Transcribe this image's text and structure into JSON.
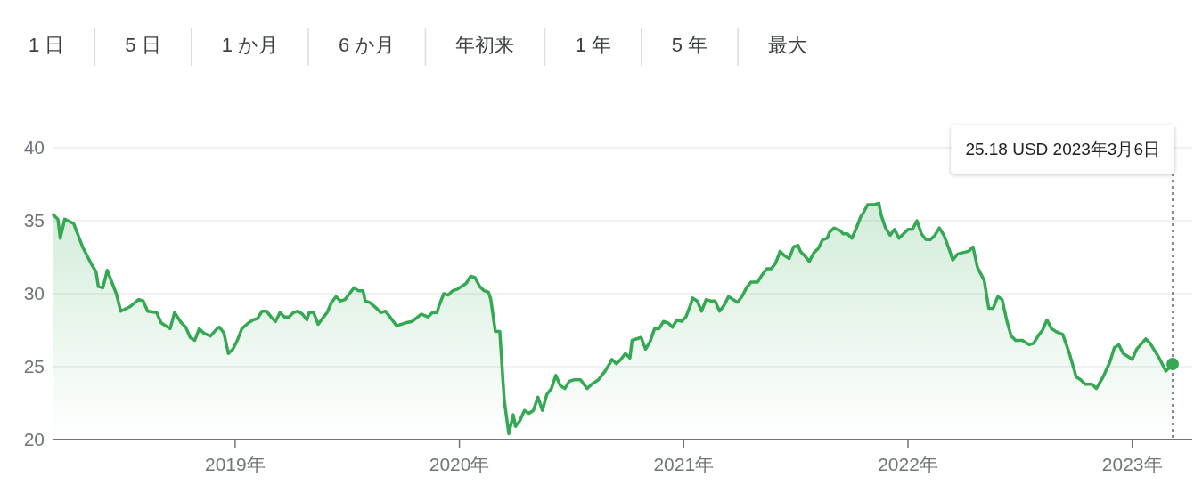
{
  "chart_data": {
    "type": "area",
    "annotations": [
      "1 日",
      "5 日",
      "1 か月",
      "6 か月",
      "年初来",
      "1 年",
      "5 年",
      "最大"
    ],
    "x": [
      2018.19,
      2018.21,
      2018.22,
      2018.24,
      2018.28,
      2018.32,
      2018.36,
      2018.38,
      2018.39,
      2018.41,
      2018.43,
      2018.47,
      2018.49,
      2018.53,
      2018.57,
      2018.59,
      2018.61,
      2018.65,
      2018.67,
      2018.71,
      2018.73,
      2018.76,
      2018.78,
      2018.8,
      2018.82,
      2018.84,
      2018.86,
      2018.89,
      2018.92,
      2018.93,
      2018.95,
      2018.97,
      2018.99,
      2019.01,
      2019.03,
      2019.06,
      2019.08,
      2019.1,
      2019.12,
      2019.14,
      2019.16,
      2019.18,
      2019.2,
      2019.22,
      2019.24,
      2019.26,
      2019.28,
      2019.3,
      2019.32,
      2019.33,
      2019.35,
      2019.37,
      2019.39,
      2019.41,
      2019.43,
      2019.45,
      2019.47,
      2019.49,
      2019.51,
      2019.53,
      2019.55,
      2019.57,
      2019.58,
      2019.6,
      2019.63,
      2019.65,
      2019.67,
      2019.69,
      2019.72,
      2019.76,
      2019.79,
      2019.83,
      2019.86,
      2019.88,
      2019.9,
      2019.91,
      2019.93,
      2019.95,
      2019.97,
      2019.99,
      2020.03,
      2020.05,
      2020.07,
      2020.09,
      2020.11,
      2020.13,
      2020.14,
      2020.16,
      2020.18,
      2020.2,
      2020.22,
      2020.24,
      2020.25,
      2020.27,
      2020.29,
      2020.31,
      2020.33,
      2020.35,
      2020.37,
      2020.39,
      2020.41,
      2020.43,
      2020.45,
      2020.47,
      2020.49,
      2020.51,
      2020.54,
      2020.57,
      2020.59,
      2020.62,
      2020.65,
      2020.67,
      2020.68,
      2020.7,
      2020.72,
      2020.74,
      2020.76,
      2020.77,
      2020.81,
      2020.83,
      2020.85,
      2020.87,
      2020.89,
      2020.91,
      2020.93,
      2020.95,
      2020.97,
      2020.99,
      2021.01,
      2021.03,
      2021.04,
      2021.06,
      2021.08,
      2021.1,
      2021.12,
      2021.14,
      2021.16,
      2021.18,
      2021.2,
      2021.22,
      2021.24,
      2021.26,
      2021.28,
      2021.3,
      2021.33,
      2021.35,
      2021.37,
      2021.39,
      2021.41,
      2021.43,
      2021.45,
      2021.47,
      2021.49,
      2021.51,
      2021.52,
      2021.54,
      2021.56,
      2021.58,
      2021.6,
      2021.62,
      2021.64,
      2021.65,
      2021.67,
      2021.7,
      2021.71,
      2021.73,
      2021.75,
      2021.77,
      2021.79,
      2021.8,
      2021.82,
      2021.85,
      2021.87,
      2021.88,
      2021.9,
      2021.92,
      2021.94,
      2021.96,
      2021.98,
      2022.0,
      2022.02,
      2022.04,
      2022.06,
      2022.08,
      2022.1,
      2022.12,
      2022.14,
      2022.16,
      2022.18,
      2022.2,
      2022.22,
      2022.24,
      2022.27,
      2022.29,
      2022.31,
      2022.32,
      2022.34,
      2022.36,
      2022.38,
      2022.4,
      2022.42,
      2022.44,
      2022.46,
      2022.48,
      2022.51,
      2022.54,
      2022.56,
      2022.58,
      2022.6,
      2022.62,
      2022.64,
      2022.66,
      2022.69,
      2022.72,
      2022.75,
      2022.77,
      2022.79,
      2022.82,
      2022.84,
      2022.87,
      2022.9,
      2022.92,
      2022.94,
      2022.96,
      2023.0,
      2023.02,
      2023.06,
      2023.08,
      2023.12,
      2023.13,
      2023.15,
      2023.17,
      2023.18
    ],
    "series": [
      {
        "color": "#34a853",
        "values": [
          35.4,
          35.1,
          33.8,
          35.1,
          34.8,
          33.2,
          32.0,
          31.5,
          30.5,
          30.4,
          31.6,
          30.0,
          28.8,
          29.1,
          29.6,
          29.5,
          28.8,
          28.7,
          28.0,
          27.6,
          28.7,
          28.0,
          27.7,
          27.0,
          26.8,
          27.6,
          27.3,
          27.1,
          27.6,
          27.7,
          27.3,
          25.9,
          26.2,
          26.8,
          27.6,
          28.0,
          28.2,
          28.3,
          28.8,
          28.8,
          28.4,
          28.1,
          28.7,
          28.4,
          28.4,
          28.7,
          28.8,
          28.6,
          28.2,
          28.7,
          28.7,
          27.9,
          28.3,
          28.7,
          29.4,
          29.8,
          29.5,
          29.6,
          30.0,
          30.4,
          30.2,
          30.2,
          29.5,
          29.4,
          29.0,
          28.7,
          28.8,
          28.4,
          27.8,
          28.0,
          28.1,
          28.6,
          28.4,
          28.7,
          28.7,
          29.2,
          30.0,
          29.9,
          30.2,
          30.3,
          30.7,
          31.2,
          31.1,
          30.5,
          30.2,
          30.1,
          29.6,
          27.4,
          27.4,
          22.7,
          20.4,
          21.7,
          20.9,
          21.3,
          22.0,
          21.8,
          22.0,
          22.9,
          22.0,
          23.1,
          23.5,
          24.4,
          23.7,
          23.5,
          24.0,
          24.1,
          24.1,
          23.5,
          23.8,
          24.1,
          24.7,
          25.2,
          25.5,
          25.2,
          25.5,
          25.9,
          25.6,
          26.8,
          27.0,
          26.2,
          26.7,
          27.6,
          27.6,
          28.1,
          28.0,
          27.7,
          28.2,
          28.1,
          28.4,
          29.2,
          29.7,
          29.5,
          28.8,
          29.6,
          29.5,
          29.5,
          28.8,
          29.2,
          29.8,
          29.6,
          29.4,
          29.8,
          30.4,
          30.8,
          30.8,
          31.3,
          31.7,
          31.7,
          32.1,
          32.9,
          32.6,
          32.4,
          33.2,
          33.3,
          32.9,
          32.6,
          32.2,
          32.8,
          33.1,
          33.7,
          33.8,
          34.2,
          34.5,
          34.3,
          34.1,
          34.1,
          33.8,
          34.5,
          35.3,
          35.5,
          36.1,
          36.1,
          36.2,
          35.4,
          34.5,
          34.0,
          34.4,
          33.8,
          34.1,
          34.4,
          34.4,
          35.0,
          34.1,
          33.7,
          33.7,
          34.0,
          34.5,
          34.0,
          33.2,
          32.3,
          32.7,
          32.8,
          32.9,
          33.2,
          31.8,
          31.5,
          30.9,
          29.0,
          29.0,
          29.8,
          29.6,
          28.2,
          27.1,
          26.8,
          26.8,
          26.5,
          26.6,
          27.1,
          27.5,
          28.2,
          27.6,
          27.4,
          27.2,
          25.9,
          24.3,
          24.1,
          23.8,
          23.8,
          23.5,
          24.3,
          25.3,
          26.3,
          26.5,
          25.9,
          25.5,
          26.2,
          26.9,
          26.6,
          25.6,
          25.3,
          24.7,
          25.0,
          25.18
        ]
      }
    ],
    "xlim": [
      2018.19,
      2023.18
    ],
    "ylim": [
      20,
      40
    ],
    "xticks": [
      {
        "value": 2019,
        "label": "2019年"
      },
      {
        "value": 2020,
        "label": "2020年"
      },
      {
        "value": 2021,
        "label": "2021年"
      },
      {
        "value": 2022,
        "label": "2022年"
      },
      {
        "value": 2023,
        "label": "2023年"
      }
    ],
    "yticks": [
      20,
      25,
      30,
      35,
      40
    ],
    "grid": "y",
    "ref_lines": [
      {
        "axis": "x",
        "value": 2023.18,
        "label": "25.18 USD  2023年3月6日",
        "line_style": "dotted",
        "color": "#5f6368"
      }
    ]
  }
}
